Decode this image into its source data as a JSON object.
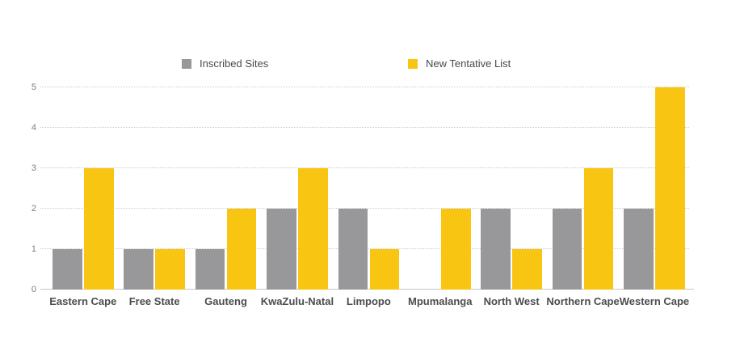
{
  "chart_data": {
    "type": "bar",
    "title": "",
    "categories": [
      "Eastern Cape",
      "Free State",
      "Gauteng",
      "KwaZulu-Natal",
      "Limpopo",
      "Mpumalanga",
      "North West",
      "Northern Cape",
      "Western Cape"
    ],
    "series": [
      {
        "name": "Inscribed Sites",
        "color": "#98989B",
        "values": [
          1,
          1,
          1,
          2,
          2,
          0,
          2,
          2,
          2
        ]
      },
      {
        "name": "New Tentative List",
        "color": "#F9C513",
        "values": [
          3,
          1,
          2,
          3,
          1,
          2,
          1,
          3,
          5
        ]
      }
    ],
    "ylim": [
      0,
      5
    ],
    "yticks": [
      0,
      1,
      2,
      3,
      4,
      5
    ],
    "grid": "dotted-horizontal",
    "legend_position": "top",
    "background": "#FFFFFF"
  }
}
